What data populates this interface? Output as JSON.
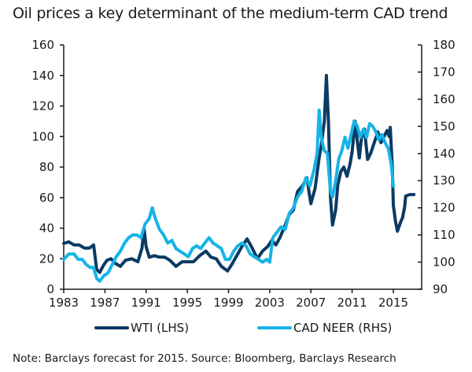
{
  "title": "Oil prices a key determinant of the medium-term CAD trend",
  "note": "Note: Barclays forecast for 2015. Source: Bloomberg, Barclays Research",
  "colors": {
    "wti": "#0b3a63",
    "cad": "#15b4e6",
    "axis": "#1a1a1a"
  },
  "legend": [
    {
      "label": "WTI (LHS)",
      "color": "#0b3a63"
    },
    {
      "label": "CAD NEER (RHS)",
      "color": "#15b4e6"
    }
  ],
  "chart_data": {
    "type": "line",
    "title": "Oil prices a key determinant of the medium-term CAD trend",
    "xlabel": "",
    "ylabel": "",
    "xlim": [
      1983,
      2017.75
    ],
    "x_ticks": [
      1983,
      1987,
      1991,
      1995,
      1999,
      2003,
      2007,
      2011,
      2015
    ],
    "y_left": {
      "label": "WTI (LHS)",
      "range": [
        0,
        160
      ],
      "ticks": [
        0,
        20,
        40,
        60,
        80,
        100,
        120,
        140,
        160
      ]
    },
    "y_right": {
      "label": "CAD NEER (RHS)",
      "range": [
        90,
        180
      ],
      "ticks": [
        90,
        100,
        110,
        120,
        130,
        140,
        150,
        160,
        170,
        180
      ]
    },
    "grid": false,
    "legend_position": "bottom",
    "series": [
      {
        "name": "WTI (LHS)",
        "axis": "left",
        "points": [
          [
            1983.0,
            30
          ],
          [
            1983.5,
            31
          ],
          [
            1984.0,
            29
          ],
          [
            1984.5,
            29
          ],
          [
            1985.0,
            27
          ],
          [
            1985.5,
            27
          ],
          [
            1985.9,
            29
          ],
          [
            1986.2,
            13
          ],
          [
            1986.5,
            11
          ],
          [
            1986.8,
            15
          ],
          [
            1987.2,
            19
          ],
          [
            1987.6,
            20
          ],
          [
            1988.0,
            17
          ],
          [
            1988.5,
            15
          ],
          [
            1989.0,
            19
          ],
          [
            1989.6,
            20
          ],
          [
            1990.2,
            18
          ],
          [
            1990.6,
            27
          ],
          [
            1990.8,
            40
          ],
          [
            1991.0,
            28
          ],
          [
            1991.3,
            21
          ],
          [
            1991.8,
            22
          ],
          [
            1992.3,
            21
          ],
          [
            1992.8,
            21
          ],
          [
            1993.3,
            19
          ],
          [
            1993.9,
            15
          ],
          [
            1994.5,
            18
          ],
          [
            1995.0,
            18
          ],
          [
            1995.6,
            18
          ],
          [
            1996.2,
            22
          ],
          [
            1996.8,
            25
          ],
          [
            1997.3,
            21
          ],
          [
            1997.8,
            20
          ],
          [
            1998.3,
            15
          ],
          [
            1998.9,
            12
          ],
          [
            1999.3,
            16
          ],
          [
            1999.8,
            22
          ],
          [
            2000.3,
            28
          ],
          [
            2000.8,
            33
          ],
          [
            2001.3,
            27
          ],
          [
            2001.8,
            20
          ],
          [
            2002.3,
            25
          ],
          [
            2002.8,
            28
          ],
          [
            2003.2,
            32
          ],
          [
            2003.6,
            29
          ],
          [
            2004.0,
            34
          ],
          [
            2004.5,
            42
          ],
          [
            2004.9,
            49
          ],
          [
            2005.3,
            52
          ],
          [
            2005.7,
            64
          ],
          [
            2006.2,
            68
          ],
          [
            2006.6,
            73
          ],
          [
            2007.0,
            56
          ],
          [
            2007.4,
            66
          ],
          [
            2007.8,
            86
          ],
          [
            2008.0,
            94
          ],
          [
            2008.3,
            110
          ],
          [
            2008.5,
            140
          ],
          [
            2008.7,
            110
          ],
          [
            2008.9,
            60
          ],
          [
            2009.1,
            42
          ],
          [
            2009.4,
            52
          ],
          [
            2009.6,
            68
          ],
          [
            2009.9,
            77
          ],
          [
            2010.2,
            80
          ],
          [
            2010.5,
            74
          ],
          [
            2010.8,
            82
          ],
          [
            2011.0,
            90
          ],
          [
            2011.3,
            110
          ],
          [
            2011.5,
            97
          ],
          [
            2011.7,
            86
          ],
          [
            2011.9,
            99
          ],
          [
            2012.2,
            105
          ],
          [
            2012.5,
            85
          ],
          [
            2012.8,
            89
          ],
          [
            2013.1,
            95
          ],
          [
            2013.5,
            103
          ],
          [
            2013.8,
            96
          ],
          [
            2014.1,
            100
          ],
          [
            2014.4,
            104
          ],
          [
            2014.6,
            100
          ],
          [
            2014.7,
            106
          ],
          [
            2014.9,
            80
          ],
          [
            2015.0,
            55
          ],
          [
            2015.2,
            45
          ],
          [
            2015.4,
            38
          ],
          [
            2015.7,
            44
          ],
          [
            2015.9,
            47
          ],
          [
            2016.1,
            54
          ],
          [
            2016.2,
            61
          ],
          [
            2016.6,
            62
          ],
          [
            2017.0,
            62
          ]
        ]
      },
      {
        "name": "CAD NEER (RHS)",
        "axis": "right",
        "points": [
          [
            1983.0,
            101
          ],
          [
            1983.5,
            103
          ],
          [
            1984.0,
            103
          ],
          [
            1984.4,
            101
          ],
          [
            1984.8,
            101
          ],
          [
            1985.2,
            99
          ],
          [
            1985.6,
            98
          ],
          [
            1985.9,
            98
          ],
          [
            1986.2,
            94
          ],
          [
            1986.5,
            93
          ],
          [
            1986.9,
            95
          ],
          [
            1987.3,
            96
          ],
          [
            1987.7,
            99
          ],
          [
            1988.1,
            102
          ],
          [
            1988.5,
            104
          ],
          [
            1988.9,
            107
          ],
          [
            1989.3,
            109
          ],
          [
            1989.7,
            110
          ],
          [
            1990.1,
            110
          ],
          [
            1990.5,
            109
          ],
          [
            1990.9,
            114
          ],
          [
            1991.3,
            116
          ],
          [
            1991.6,
            120
          ],
          [
            1991.9,
            116
          ],
          [
            1992.3,
            112
          ],
          [
            1992.7,
            110
          ],
          [
            1993.1,
            107
          ],
          [
            1993.5,
            108
          ],
          [
            1993.9,
            105
          ],
          [
            1994.3,
            104
          ],
          [
            1994.7,
            103
          ],
          [
            1995.1,
            102
          ],
          [
            1995.5,
            105
          ],
          [
            1995.9,
            106
          ],
          [
            1996.3,
            105
          ],
          [
            1996.7,
            107
          ],
          [
            1997.1,
            109
          ],
          [
            1997.5,
            107
          ],
          [
            1997.9,
            106
          ],
          [
            1998.3,
            105
          ],
          [
            1998.7,
            101
          ],
          [
            1999.1,
            101
          ],
          [
            1999.5,
            104
          ],
          [
            1999.9,
            106
          ],
          [
            2000.3,
            107
          ],
          [
            2000.7,
            106
          ],
          [
            2001.1,
            103
          ],
          [
            2001.5,
            102
          ],
          [
            2001.9,
            101
          ],
          [
            2002.3,
            100
          ],
          [
            2002.7,
            101
          ],
          [
            2003.0,
            100
          ],
          [
            2003.3,
            109
          ],
          [
            2003.7,
            111
          ],
          [
            2004.1,
            113
          ],
          [
            2004.5,
            112
          ],
          [
            2004.9,
            118
          ],
          [
            2005.3,
            120
          ],
          [
            2005.7,
            124
          ],
          [
            2006.1,
            126
          ],
          [
            2006.5,
            131
          ],
          [
            2006.9,
            128
          ],
          [
            2007.3,
            134
          ],
          [
            2007.6,
            140
          ],
          [
            2007.8,
            156
          ],
          [
            2008.0,
            146
          ],
          [
            2008.3,
            141
          ],
          [
            2008.6,
            140
          ],
          [
            2008.9,
            126
          ],
          [
            2009.1,
            124
          ],
          [
            2009.4,
            130
          ],
          [
            2009.7,
            138
          ],
          [
            2010.0,
            141
          ],
          [
            2010.3,
            146
          ],
          [
            2010.6,
            142
          ],
          [
            2010.9,
            147
          ],
          [
            2011.2,
            152
          ],
          [
            2011.5,
            150
          ],
          [
            2011.8,
            146
          ],
          [
            2012.1,
            149
          ],
          [
            2012.4,
            146
          ],
          [
            2012.7,
            151
          ],
          [
            2013.0,
            150
          ],
          [
            2013.3,
            148
          ],
          [
            2013.6,
            145
          ],
          [
            2013.9,
            147
          ],
          [
            2014.2,
            144
          ],
          [
            2014.5,
            142
          ],
          [
            2014.8,
            136
          ],
          [
            2015.0,
            128
          ]
        ]
      }
    ]
  }
}
